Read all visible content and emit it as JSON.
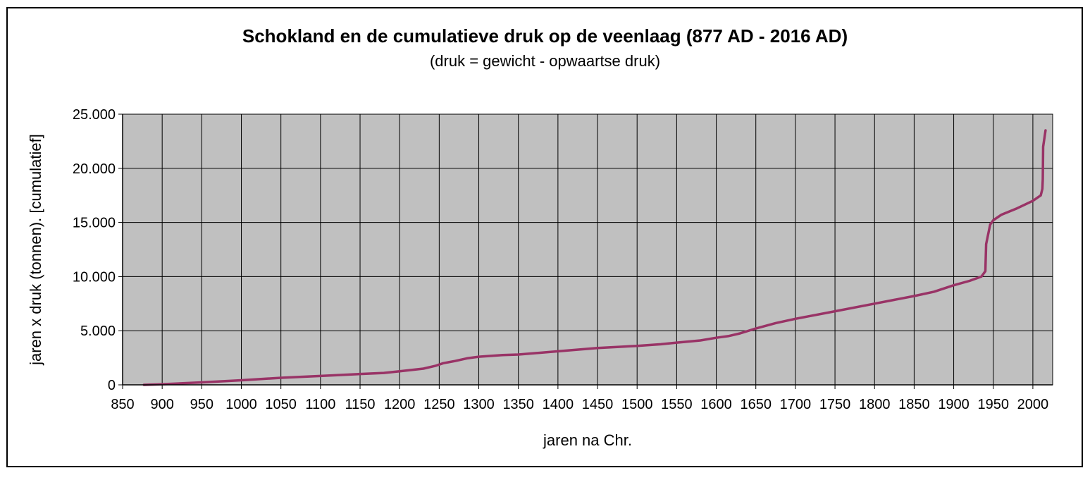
{
  "chart_data": {
    "type": "line",
    "title": "Schokland en de cumulatieve druk op de veenlaag (877 AD - 2016 AD)",
    "subtitle": "(druk = gewicht - opwaartse druk)",
    "xlabel": "jaren na Chr.",
    "ylabel": "jaren x druk (tonnen).  [cumulatief]",
    "xlim": [
      850,
      2025
    ],
    "ylim": [
      0,
      25000
    ],
    "x_ticks": [
      850,
      900,
      950,
      1000,
      1050,
      1100,
      1150,
      1200,
      1250,
      1300,
      1350,
      1400,
      1450,
      1500,
      1550,
      1600,
      1650,
      1700,
      1750,
      1800,
      1850,
      1900,
      1950,
      2000
    ],
    "x_tick_labels": [
      "850",
      "900",
      "950",
      "1000",
      "1050",
      "1100",
      "1150",
      "1200",
      "1250",
      "1300",
      "1350",
      "1400",
      "1450",
      "1500",
      "1550",
      "1600",
      "1650",
      "1700",
      "1750",
      "1800",
      "1850",
      "1900",
      "1950",
      "2000"
    ],
    "y_ticks": [
      0,
      5000,
      10000,
      15000,
      20000,
      25000
    ],
    "y_tick_labels": [
      "0",
      "5.000",
      "10.000",
      "15.000",
      "20.000",
      "25.000"
    ],
    "grid": true,
    "legend": "none",
    "plot_background": "#c0c0c0",
    "line_color": "#993366",
    "series": [
      {
        "x": [
          877,
          900,
          950,
          1000,
          1050,
          1100,
          1150,
          1180,
          1200,
          1230,
          1245,
          1255,
          1270,
          1285,
          1300,
          1330,
          1350,
          1400,
          1450,
          1500,
          1530,
          1550,
          1580,
          1600,
          1615,
          1630,
          1650,
          1675,
          1700,
          1750,
          1800,
          1850,
          1875,
          1900,
          1920,
          1935,
          1940,
          1941,
          1946,
          1950,
          1960,
          1980,
          2000,
          2010,
          2012,
          2012.5,
          2013,
          2016
        ],
        "y": [
          0,
          60,
          230,
          420,
          650,
          820,
          1000,
          1100,
          1250,
          1500,
          1750,
          2000,
          2200,
          2450,
          2600,
          2750,
          2800,
          3100,
          3400,
          3600,
          3750,
          3900,
          4100,
          4350,
          4500,
          4750,
          5200,
          5700,
          6100,
          6800,
          7500,
          8200,
          8600,
          9200,
          9600,
          10000,
          10500,
          13000,
          14800,
          15200,
          15700,
          16300,
          17000,
          17500,
          18100,
          19000,
          22000,
          23500
        ]
      }
    ]
  }
}
